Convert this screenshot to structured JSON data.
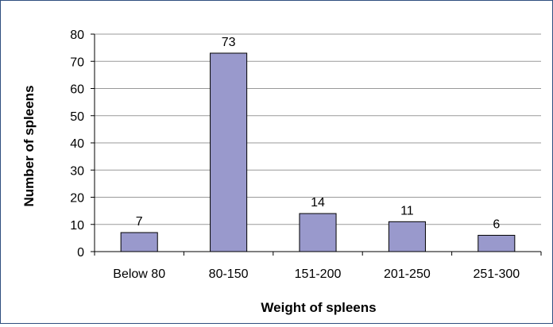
{
  "chart_data": {
    "type": "bar",
    "title": "",
    "xlabel": "Weight of spleens",
    "ylabel": "Number of spleens",
    "categories": [
      "Below 80",
      "80-150",
      "151-200",
      "201-250",
      "251-300"
    ],
    "values": [
      7,
      73,
      14,
      11,
      6
    ],
    "data_labels": [
      "7",
      "73",
      "14",
      "11",
      "6"
    ],
    "ylim": [
      0,
      80
    ],
    "yticks": [
      0,
      10,
      20,
      30,
      40,
      50,
      60,
      70,
      80
    ],
    "grid": true,
    "legend": "none",
    "bar_color": "#9999cc",
    "bar_edge_color": "#000000",
    "grid_color": "#999999"
  }
}
